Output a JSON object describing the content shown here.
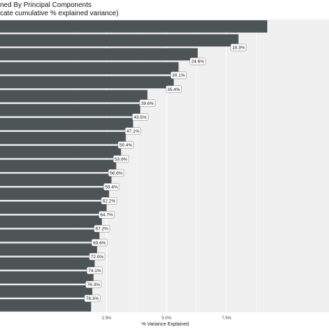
{
  "chart_data": {
    "type": "bar",
    "orientation": "horizontal",
    "title": "ned By Principal Components",
    "subtitle": "cate cumulative % explained variance)",
    "xlabel": "% Variance Explained",
    "ylabel": "",
    "xlim": [
      0,
      9.2
    ],
    "x_ticks": [
      2.5,
      5.0,
      7.5
    ],
    "x_tick_labels": [
      "2.5%",
      "5.0%",
      "7.5%"
    ],
    "grid": true,
    "bar_color": "#4d5456",
    "panel_color": "#f0f0f0",
    "values": [
      9.2,
      8.0,
      6.3,
      5.5,
      5.3,
      4.2,
      3.9,
      3.6,
      3.3,
      3.1,
      2.9,
      2.7,
      2.6,
      2.5,
      2.3,
      2.2,
      2.1,
      2.0,
      1.95,
      1.9,
      1.85
    ],
    "data_labels": [
      "",
      "18.3%",
      "24.6%",
      "30.1%",
      "35.4%",
      "39.6%",
      "43.5%",
      "47.1%",
      "50.4%",
      "53.6%",
      "56.6%",
      "59.4%",
      "62.2%",
      "64.7%",
      "67.2%",
      "69.6%",
      "72.0%",
      "74.1%",
      "76.3%",
      "78.3%",
      ""
    ]
  }
}
